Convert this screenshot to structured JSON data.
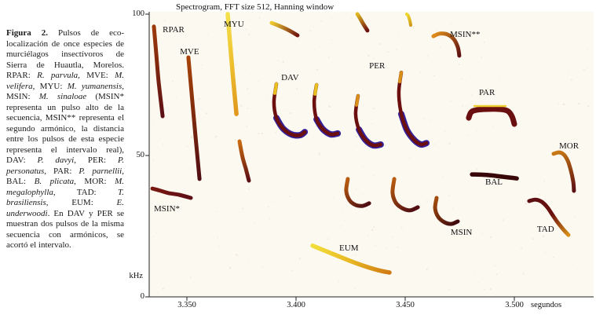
{
  "figure": {
    "caption": [
      {
        "t": "Figura 2.",
        "s": "b"
      },
      {
        "t": " Pulsos de eco-localización de once especies de murciélagos insectívoros de Sierra de Huautla, Morelos. RPAR: ",
        "s": "n"
      },
      {
        "t": "R. parvula",
        "s": "i"
      },
      {
        "t": ", MVE: ",
        "s": "n"
      },
      {
        "t": "M. velifera",
        "s": "i"
      },
      {
        "t": ", MYU: ",
        "s": "n"
      },
      {
        "t": "M. yumanensis",
        "s": "i"
      },
      {
        "t": ", MSIN: ",
        "s": "n"
      },
      {
        "t": "M. sinaloae",
        "s": "i"
      },
      {
        "t": " (MSIN* representa un pulso alto de la secuencia, MSIN** representa el segundo armónico, la distancia entre los pulsos de esta especie representa el intervalo real), DAV: ",
        "s": "n"
      },
      {
        "t": "P. davyi",
        "s": "i"
      },
      {
        "t": ", PER: ",
        "s": "n"
      },
      {
        "t": "P. personatus",
        "s": "i"
      },
      {
        "t": ", PAR: ",
        "s": "n"
      },
      {
        "t": "P. parnellii",
        "s": "i"
      },
      {
        "t": ", BAL: ",
        "s": "n"
      },
      {
        "t": "B. plicata",
        "s": "i"
      },
      {
        "t": ", MOR: ",
        "s": "n"
      },
      {
        "t": "M. megalophylla",
        "s": "i"
      },
      {
        "t": ", TAD: ",
        "s": "n"
      },
      {
        "t": "T. brasiliensis",
        "s": "i"
      },
      {
        "t": ", EUM: ",
        "s": "n"
      },
      {
        "t": "E. underwoodi",
        "s": "i"
      },
      {
        "t": ". En DAV y PER se muestran dos pulsos de la misma secuencia con armónicos, se acortó el intervalo.",
        "s": "n"
      }
    ]
  },
  "chart_data": {
    "type": "spectrogram",
    "title": "Spectrogram, FFT size 512, Hanning window",
    "x_axis": {
      "unit_label": "segundos",
      "range_s": [
        3.333,
        3.553
      ],
      "ticks": [
        {
          "label": "3.350",
          "t": 3.35
        },
        {
          "label": "3.400",
          "t": 3.4
        },
        {
          "label": "3.450",
          "t": 3.45
        },
        {
          "label": "3.500",
          "t": 3.5
        }
      ]
    },
    "y_axis": {
      "unit_label": "kHz",
      "range_khz": [
        0,
        100
      ],
      "ticks": [
        {
          "label": "100",
          "f": 100
        },
        {
          "label": "50",
          "f": 50
        },
        {
          "label": "0",
          "f": 0
        }
      ]
    },
    "species_labels": [
      {
        "text": "RPAR",
        "t": 3.3389,
        "f": 96.1
      },
      {
        "text": "MVE",
        "t": 3.3468,
        "f": 88.3
      },
      {
        "text": "MYU",
        "t": 3.3669,
        "f": 98.1
      },
      {
        "text": "MSIN**",
        "t": 3.4705,
        "f": 94.4
      },
      {
        "text": "DAV",
        "t": 3.3932,
        "f": 79.2
      },
      {
        "text": "PER",
        "t": 3.4335,
        "f": 83.3
      },
      {
        "text": "PAR",
        "t": 3.4838,
        "f": 73.9
      },
      {
        "text": "MOR",
        "t": 3.5205,
        "f": 55.0
      },
      {
        "text": "BAL",
        "t": 3.4867,
        "f": 42.2
      },
      {
        "text": "MSIN*",
        "t": 3.3349,
        "f": 32.8
      },
      {
        "text": "MSIN",
        "t": 3.4708,
        "f": 24.4
      },
      {
        "text": "TAD",
        "t": 3.5104,
        "f": 25.6
      },
      {
        "text": "EUM",
        "t": 3.4198,
        "f": 18.9
      }
    ],
    "pulses": [
      {
        "species": "RPAR",
        "part": "main",
        "w": 5,
        "colors": [
          "#9c3a0a",
          "#5c0f14"
        ],
        "pts": [
          [
            3.3349,
            95.6
          ],
          [
            3.336,
            85.6
          ],
          [
            3.3371,
            75.8
          ],
          [
            3.3389,
            63.9
          ]
        ]
      },
      {
        "species": "MSIN*",
        "part": "main",
        "w": 5,
        "colors": [
          "#7a1812",
          "#5c0f14"
        ],
        "pts": [
          [
            3.3342,
            38.3
          ],
          [
            3.3381,
            37.5
          ],
          [
            3.3417,
            36.7
          ],
          [
            3.3464,
            36.1
          ],
          [
            3.3518,
            35.0
          ]
        ]
      },
      {
        "species": "MVE",
        "part": "main",
        "w": 5,
        "colors": [
          "#a84408",
          "#4f0d12"
        ],
        "pts": [
          [
            3.3507,
            84.7
          ],
          [
            3.3522,
            71.7
          ],
          [
            3.354,
            56.4
          ],
          [
            3.3558,
            41.7
          ]
        ]
      },
      {
        "species": "MYU",
        "part": "upper",
        "w": 5.5,
        "colors": [
          "#f4e14a",
          "#edbf2e",
          "#e0971c"
        ],
        "pts": [
          [
            3.3687,
            100
          ],
          [
            3.3698,
            89.7
          ],
          [
            3.3712,
            77.2
          ],
          [
            3.3727,
            64.7
          ]
        ]
      },
      {
        "species": "MYU",
        "part": "lower",
        "w": 5,
        "colors": [
          "#c96a10",
          "#5c0f14"
        ],
        "pts": [
          [
            3.3741,
            55.0
          ],
          [
            3.3755,
            49.4
          ],
          [
            3.377,
            45.3
          ],
          [
            3.3784,
            41.1
          ]
        ]
      },
      {
        "species": "unlabeled-a",
        "part": "main",
        "w": 5,
        "colors": [
          "#eecb30",
          "#70160f"
        ],
        "pts": [
          [
            3.3888,
            96.9
          ],
          [
            3.3924,
            95.8
          ],
          [
            3.3964,
            94.4
          ],
          [
            3.4007,
            92.5
          ]
        ]
      },
      {
        "species": "unlabeled-b",
        "part": "main",
        "w": 5,
        "colors": [
          "#e0b820",
          "#6e120f"
        ],
        "pts": [
          [
            3.4281,
            100
          ],
          [
            3.4295,
            98.3
          ],
          [
            3.4309,
            96.4
          ],
          [
            3.4327,
            94.2
          ]
        ]
      },
      {
        "species": "unlabeled-c",
        "part": "main",
        "w": 4,
        "colors": [
          "#f0d830",
          "#cf9a16"
        ],
        "pts": [
          [
            3.4507,
            100
          ],
          [
            3.4514,
            99.4
          ],
          [
            3.4522,
            97.5
          ],
          [
            3.4525,
            96.1
          ]
        ]
      },
      {
        "species": "MSIN**",
        "part": "main",
        "w": 5,
        "colors": [
          "#dd8d1a",
          "#5f1012"
        ],
        "pts": [
          [
            3.4629,
            92.2
          ],
          [
            3.4658,
            93.1
          ],
          [
            3.4694,
            92.8
          ],
          [
            3.4723,
            91.1
          ],
          [
            3.4741,
            88.3
          ],
          [
            3.4748,
            85.3
          ]
        ]
      },
      {
        "species": "DAV",
        "part": "harmonic-1",
        "w": 8,
        "colors": [
          "#34209a"
        ],
        "pts": [
          [
            3.391,
            63.3
          ],
          [
            3.3939,
            59.7
          ],
          [
            3.3978,
            57.5
          ],
          [
            3.4018,
            57.2
          ],
          [
            3.404,
            58.3
          ]
        ]
      },
      {
        "species": "DAV",
        "part": "main-1",
        "w": 4.5,
        "colors": [
          "#6b100f"
        ],
        "pts": [
          [
            3.391,
            75.3
          ],
          [
            3.3899,
            68.9
          ],
          [
            3.391,
            63.3
          ],
          [
            3.3939,
            59.7
          ],
          [
            3.3978,
            57.5
          ],
          [
            3.4018,
            57.2
          ],
          [
            3.404,
            58.3
          ]
        ]
      },
      {
        "species": "DAV",
        "part": "tip-1",
        "w": 4,
        "colors": [
          "#e8c020"
        ],
        "pts": [
          [
            3.391,
            75.3
          ],
          [
            3.3903,
            72.0
          ]
        ]
      },
      {
        "species": "DAV",
        "part": "harmonic-2",
        "w": 8,
        "colors": [
          "#34209a"
        ],
        "pts": [
          [
            3.4094,
            62.8
          ],
          [
            3.4122,
            59.4
          ],
          [
            3.4158,
            57.5
          ],
          [
            3.4191,
            57.8
          ]
        ]
      },
      {
        "species": "DAV",
        "part": "main-2",
        "w": 4.5,
        "colors": [
          "#6b100f"
        ],
        "pts": [
          [
            3.4094,
            75.0
          ],
          [
            3.4083,
            68.9
          ],
          [
            3.4094,
            62.8
          ],
          [
            3.4122,
            59.4
          ],
          [
            3.4158,
            57.5
          ],
          [
            3.4191,
            57.8
          ]
        ]
      },
      {
        "species": "DAV",
        "part": "tip-2",
        "w": 4,
        "colors": [
          "#e8c020"
        ],
        "pts": [
          [
            3.4094,
            75.0
          ],
          [
            3.4087,
            71.7
          ]
        ]
      },
      {
        "species": "PER",
        "part": "harmonic-1",
        "w": 8,
        "colors": [
          "#34209a"
        ],
        "pts": [
          [
            3.4288,
            59.2
          ],
          [
            3.4317,
            55.6
          ],
          [
            3.4353,
            53.6
          ],
          [
            3.4388,
            53.9
          ]
        ]
      },
      {
        "species": "PER",
        "part": "main-1",
        "w": 4.5,
        "colors": [
          "#6b100f"
        ],
        "pts": [
          [
            3.4284,
            71.1
          ],
          [
            3.4273,
            64.7
          ],
          [
            3.4288,
            59.2
          ],
          [
            3.4317,
            55.6
          ],
          [
            3.4353,
            53.6
          ],
          [
            3.4388,
            53.9
          ]
        ]
      },
      {
        "species": "PER",
        "part": "tip-1",
        "w": 4,
        "colors": [
          "#d89018"
        ],
        "pts": [
          [
            3.4284,
            71.1
          ],
          [
            3.4277,
            67.8
          ]
        ]
      },
      {
        "species": "PER",
        "part": "harmonic-2",
        "w": 8,
        "colors": [
          "#34209a"
        ],
        "pts": [
          [
            3.4482,
            64.7
          ],
          [
            3.4507,
            59.2
          ],
          [
            3.454,
            55.6
          ],
          [
            3.4572,
            53.9
          ],
          [
            3.4597,
            54.4
          ]
        ]
      },
      {
        "species": "PER",
        "part": "main-2",
        "w": 4.5,
        "colors": [
          "#6b100f"
        ],
        "pts": [
          [
            3.4482,
            79.4
          ],
          [
            3.4471,
            72.2
          ],
          [
            3.4482,
            64.7
          ],
          [
            3.4507,
            59.2
          ],
          [
            3.454,
            55.6
          ],
          [
            3.4572,
            53.9
          ],
          [
            3.4597,
            54.4
          ]
        ]
      },
      {
        "species": "PER",
        "part": "tip-2",
        "w": 4,
        "colors": [
          "#d89018"
        ],
        "pts": [
          [
            3.4482,
            79.4
          ],
          [
            3.4475,
            76.1
          ]
        ]
      },
      {
        "species": "MSIN",
        "part": "pulse-1",
        "w": 5,
        "colors": [
          "#b85c10",
          "#4f0d12"
        ],
        "pts": [
          [
            3.4237,
            41.7
          ],
          [
            3.423,
            37.5
          ],
          [
            3.4245,
            34.2
          ],
          [
            3.4273,
            32.5
          ],
          [
            3.4306,
            32.2
          ],
          [
            3.4335,
            33.1
          ]
        ]
      },
      {
        "species": "MSIN",
        "part": "pulse-2",
        "w": 5,
        "colors": [
          "#b85c10",
          "#4f0d12"
        ],
        "pts": [
          [
            3.445,
            41.7
          ],
          [
            3.4442,
            36.9
          ],
          [
            3.4457,
            33.3
          ],
          [
            3.4486,
            31.4
          ],
          [
            3.4522,
            30.6
          ],
          [
            3.4558,
            31.7
          ]
        ]
      },
      {
        "species": "MSIN",
        "part": "main",
        "w": 5,
        "colors": [
          "#a34c0e",
          "#420a0e"
        ],
        "pts": [
          [
            3.4644,
            35.0
          ],
          [
            3.4637,
            31.4
          ],
          [
            3.4651,
            28.3
          ],
          [
            3.468,
            26.4
          ],
          [
            3.4712,
            25.8
          ],
          [
            3.4741,
            26.7
          ]
        ]
      },
      {
        "species": "PAR",
        "part": "main",
        "w": 7,
        "colors": [
          "#6b1010"
        ],
        "pts": [
          [
            3.4791,
            63.3
          ],
          [
            3.4802,
            65.3
          ],
          [
            3.4827,
            66.1
          ],
          [
            3.4874,
            66.4
          ],
          [
            3.4928,
            66.4
          ],
          [
            3.4968,
            65.8
          ],
          [
            3.4989,
            63.9
          ],
          [
            3.5,
            61.1
          ]
        ]
      },
      {
        "species": "PAR",
        "part": "topline",
        "w": 2.5,
        "colors": [
          "#f0d030"
        ],
        "pts": [
          [
            3.4817,
            67.5
          ],
          [
            3.496,
            67.5
          ]
        ]
      },
      {
        "species": "BAL",
        "part": "main",
        "w": 5.5,
        "colors": [
          "#380808"
        ],
        "pts": [
          [
            3.4806,
            43.3
          ],
          [
            3.4874,
            43.1
          ],
          [
            3.4946,
            42.5
          ],
          [
            3.5011,
            41.9
          ]
        ]
      },
      {
        "species": "MOR",
        "part": "main",
        "w": 5,
        "colors": [
          "#c87814",
          "#5c0f12"
        ],
        "pts": [
          [
            3.518,
            50.6
          ],
          [
            3.5205,
            51.1
          ],
          [
            3.5227,
            50.3
          ],
          [
            3.5245,
            48.1
          ],
          [
            3.5259,
            44.7
          ],
          [
            3.527,
            40.6
          ],
          [
            3.5273,
            37.5
          ]
        ]
      },
      {
        "species": "TAD",
        "part": "main",
        "w": 5,
        "colors": [
          "#5c0f12",
          "#6b100f",
          "#d89018"
        ],
        "pts": [
          [
            3.5068,
            33.9
          ],
          [
            3.5097,
            34.4
          ],
          [
            3.5126,
            33.6
          ],
          [
            3.5151,
            31.7
          ],
          [
            3.5173,
            29.2
          ],
          [
            3.5198,
            26.4
          ],
          [
            3.5227,
            23.6
          ],
          [
            3.5248,
            21.9
          ]
        ]
      },
      {
        "species": "EUM",
        "part": "main",
        "w": 5.5,
        "colors": [
          "#f2de3a",
          "#e8b824",
          "#d07a14"
        ],
        "pts": [
          [
            3.4076,
            18.1
          ],
          [
            3.4155,
            15.6
          ],
          [
            3.4245,
            12.8
          ],
          [
            3.4317,
            10.8
          ],
          [
            3.4378,
            9.4
          ],
          [
            3.4428,
            8.6
          ]
        ]
      }
    ],
    "palette": {
      "dark_red": "#6b100f",
      "yellow": "#f2e13c",
      "orange": "#d07a14",
      "harmonic_blue": "#34209a",
      "plot_bg": "#fcf9f1",
      "axis": "#222222"
    }
  }
}
